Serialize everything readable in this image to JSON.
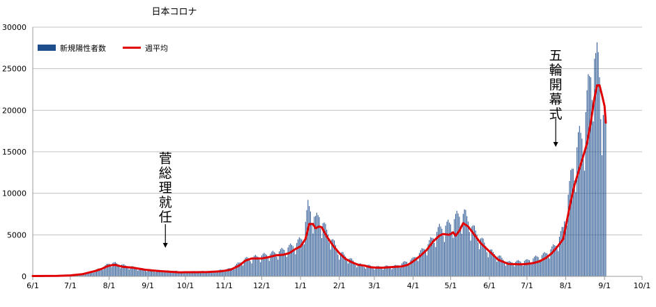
{
  "chart_data": {
    "type": "bar",
    "title": "日本コロナ",
    "xlabel": "",
    "ylabel": "",
    "ylim": [
      0,
      30000
    ],
    "yticks": [
      0,
      5000,
      10000,
      15000,
      20000,
      25000,
      30000
    ],
    "grid": "horizontal",
    "legend_position": "top-left",
    "series": [
      {
        "name": "新規陽性者数",
        "type": "bar",
        "color": "#1f4e8c"
      },
      {
        "name": "週平均",
        "type": "line",
        "color": "#e00000"
      }
    ],
    "x_tick_labels": [
      "6/1",
      "7/1",
      "8/1",
      "9/1",
      "10/1",
      "11/1",
      "12/1",
      "1/1",
      "2/1",
      "3/1",
      "4/1",
      "5/1",
      "6/1",
      "7/1",
      "8/1",
      "9/1",
      "10/1"
    ],
    "x_tick_days": [
      0,
      30,
      61,
      92,
      122,
      153,
      183,
      214,
      245,
      273,
      304,
      334,
      365,
      395,
      426,
      457,
      487
    ],
    "x_range_days": [
      0,
      487
    ],
    "data_end_day": 458,
    "weekly_average_points": [
      [
        0,
        40
      ],
      [
        10,
        50
      ],
      [
        20,
        60
      ],
      [
        30,
        120
      ],
      [
        40,
        280
      ],
      [
        50,
        650
      ],
      [
        55,
        900
      ],
      [
        60,
        1250
      ],
      [
        63,
        1350
      ],
      [
        66,
        1380
      ],
      [
        72,
        1150
      ],
      [
        80,
        1050
      ],
      [
        90,
        800
      ],
      [
        100,
        650
      ],
      [
        110,
        550
      ],
      [
        118,
        480
      ],
      [
        122,
        500
      ],
      [
        130,
        500
      ],
      [
        140,
        530
      ],
      [
        150,
        600
      ],
      [
        158,
        800
      ],
      [
        165,
        1300
      ],
      [
        170,
        1900
      ],
      [
        175,
        2150
      ],
      [
        183,
        2150
      ],
      [
        188,
        2300
      ],
      [
        195,
        2550
      ],
      [
        200,
        2600
      ],
      [
        205,
        2800
      ],
      [
        210,
        3300
      ],
      [
        214,
        3600
      ],
      [
        218,
        4500
      ],
      [
        221,
        6300
      ],
      [
        224,
        6300
      ],
      [
        226,
        5800
      ],
      [
        229,
        6000
      ],
      [
        231,
        5900
      ],
      [
        235,
        4800
      ],
      [
        240,
        3700
      ],
      [
        245,
        2800
      ],
      [
        250,
        2100
      ],
      [
        255,
        1700
      ],
      [
        260,
        1400
      ],
      [
        265,
        1300
      ],
      [
        270,
        1100
      ],
      [
        275,
        1050
      ],
      [
        280,
        1050
      ],
      [
        290,
        1150
      ],
      [
        295,
        1200
      ],
      [
        300,
        1400
      ],
      [
        304,
        1800
      ],
      [
        310,
        2500
      ],
      [
        315,
        3200
      ],
      [
        320,
        4200
      ],
      [
        325,
        4900
      ],
      [
        328,
        5100
      ],
      [
        333,
        5000
      ],
      [
        336,
        5300
      ],
      [
        338,
        4900
      ],
      [
        341,
        5500
      ],
      [
        344,
        6400
      ],
      [
        348,
        6000
      ],
      [
        352,
        5200
      ],
      [
        358,
        4000
      ],
      [
        365,
        3000
      ],
      [
        372,
        2000
      ],
      [
        380,
        1500
      ],
      [
        390,
        1450
      ],
      [
        395,
        1500
      ],
      [
        400,
        1600
      ],
      [
        405,
        1800
      ],
      [
        410,
        2200
      ],
      [
        415,
        2800
      ],
      [
        420,
        3700
      ],
      [
        424,
        4500
      ],
      [
        426,
        6000
      ],
      [
        428,
        7500
      ],
      [
        430,
        9000
      ],
      [
        433,
        11000
      ],
      [
        436,
        12500
      ],
      [
        440,
        14500
      ],
      [
        443,
        16000
      ],
      [
        446,
        18500
      ],
      [
        449,
        21500
      ],
      [
        451,
        23000
      ],
      [
        453,
        23000
      ],
      [
        455,
        21800
      ],
      [
        457,
        20500
      ],
      [
        458,
        18500
      ]
    ],
    "daily_points": [
      [
        0,
        40
      ],
      [
        20,
        80
      ],
      [
        40,
        300
      ],
      [
        50,
        700
      ],
      [
        58,
        1200
      ],
      [
        62,
        1600
      ],
      [
        66,
        1500
      ],
      [
        75,
        1200
      ],
      [
        90,
        800
      ],
      [
        105,
        650
      ],
      [
        122,
        550
      ],
      [
        145,
        600
      ],
      [
        158,
        900
      ],
      [
        170,
        2000
      ],
      [
        183,
        2400
      ],
      [
        196,
        2800
      ],
      [
        210,
        3700
      ],
      [
        216,
        4500
      ],
      [
        220,
        8000
      ],
      [
        223,
        7500
      ],
      [
        226,
        6500
      ],
      [
        229,
        7000
      ],
      [
        235,
        5200
      ],
      [
        245,
        2800
      ],
      [
        260,
        1400
      ],
      [
        275,
        1100
      ],
      [
        290,
        1200
      ],
      [
        304,
        2000
      ],
      [
        315,
        3500
      ],
      [
        325,
        5500
      ],
      [
        333,
        6000
      ],
      [
        340,
        7000
      ],
      [
        345,
        7200
      ],
      [
        352,
        5500
      ],
      [
        365,
        3000
      ],
      [
        380,
        1600
      ],
      [
        395,
        1800
      ],
      [
        410,
        2600
      ],
      [
        418,
        3600
      ],
      [
        424,
        5500
      ],
      [
        427,
        8500
      ],
      [
        431,
        12000
      ],
      [
        436,
        15500
      ],
      [
        440,
        16500
      ],
      [
        443,
        20000
      ],
      [
        446,
        23500
      ],
      [
        448,
        25900
      ],
      [
        450,
        24000
      ],
      [
        452,
        25000
      ],
      [
        454,
        22000
      ],
      [
        456,
        18500
      ],
      [
        458,
        16500
      ]
    ],
    "annotations": [
      {
        "text": "菅総理就任",
        "x_day": 106,
        "arrow": "down"
      },
      {
        "text": "五輪開幕式",
        "x_day": 418,
        "arrow": "down"
      }
    ]
  }
}
